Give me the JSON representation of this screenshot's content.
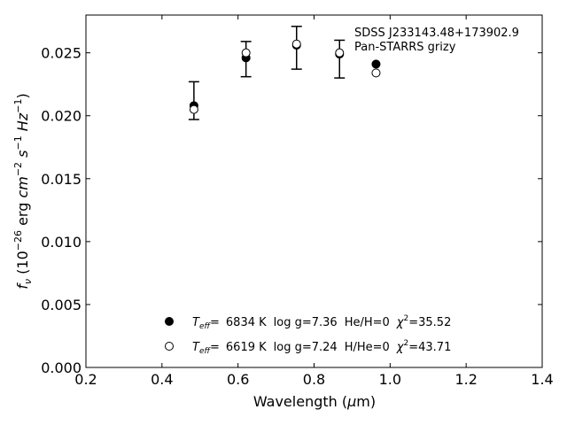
{
  "chart_data": {
    "type": "scatter",
    "title_lines": [
      "SDSS J233143.48+173902.9",
      "Pan-STARRS grizy"
    ],
    "xlabel": "Wavelength (μm)",
    "ylabel": "f_ν (10^-26 erg cm^-2 s^-1 Hz^-1)",
    "xlim": [
      0.2,
      1.4
    ],
    "ylim": [
      0.0,
      0.028
    ],
    "xticks": [
      0.2,
      0.4,
      0.6,
      0.8,
      1.0,
      1.2,
      1.4
    ],
    "xtick_labels": [
      "0.2",
      "0.4",
      "0.6",
      "0.8",
      "1.0",
      "1.2",
      "1.4"
    ],
    "yticks": [
      0.0,
      0.005,
      0.01,
      0.015,
      0.02,
      0.025
    ],
    "ytick_labels": [
      "0.000",
      "0.005",
      "0.010",
      "0.015",
      "0.020",
      "0.025"
    ],
    "grid": false,
    "observed": {
      "x": [
        0.484,
        0.621,
        0.754,
        0.867,
        0.963
      ],
      "y": [
        0.0212,
        0.0245,
        0.0254,
        0.0245,
        null
      ],
      "yerr": [
        0.0015,
        0.0014,
        0.0017,
        0.0015,
        null
      ]
    },
    "series": [
      {
        "marker": "filled",
        "x": [
          0.484,
          0.621,
          0.754,
          0.867,
          0.963
        ],
        "y": [
          0.0208,
          0.0246,
          0.0256,
          0.0249,
          0.0241
        ],
        "legend": {
          "teff_label": "T",
          "teff_sub": "eff",
          "eq": "=",
          "teff_value": "6834 K",
          "logg": "log g=7.36",
          "comp": "He/H=0",
          "chi_symbol": "χ",
          "chi_sup": "2",
          "chi_value": "=35.52"
        }
      },
      {
        "marker": "open",
        "x": [
          0.484,
          0.621,
          0.754,
          0.867,
          0.963
        ],
        "y": [
          0.0205,
          0.025,
          0.0257,
          0.025,
          0.0234
        ],
        "legend": {
          "teff_label": "T",
          "teff_sub": "eff",
          "eq": "=",
          "teff_value": "6619 K",
          "logg": "log g=7.24",
          "comp": "H/He=0",
          "chi_symbol": "χ",
          "chi_sup": "2",
          "chi_value": "=43.71"
        }
      }
    ],
    "legend_placement": "lower-center"
  }
}
